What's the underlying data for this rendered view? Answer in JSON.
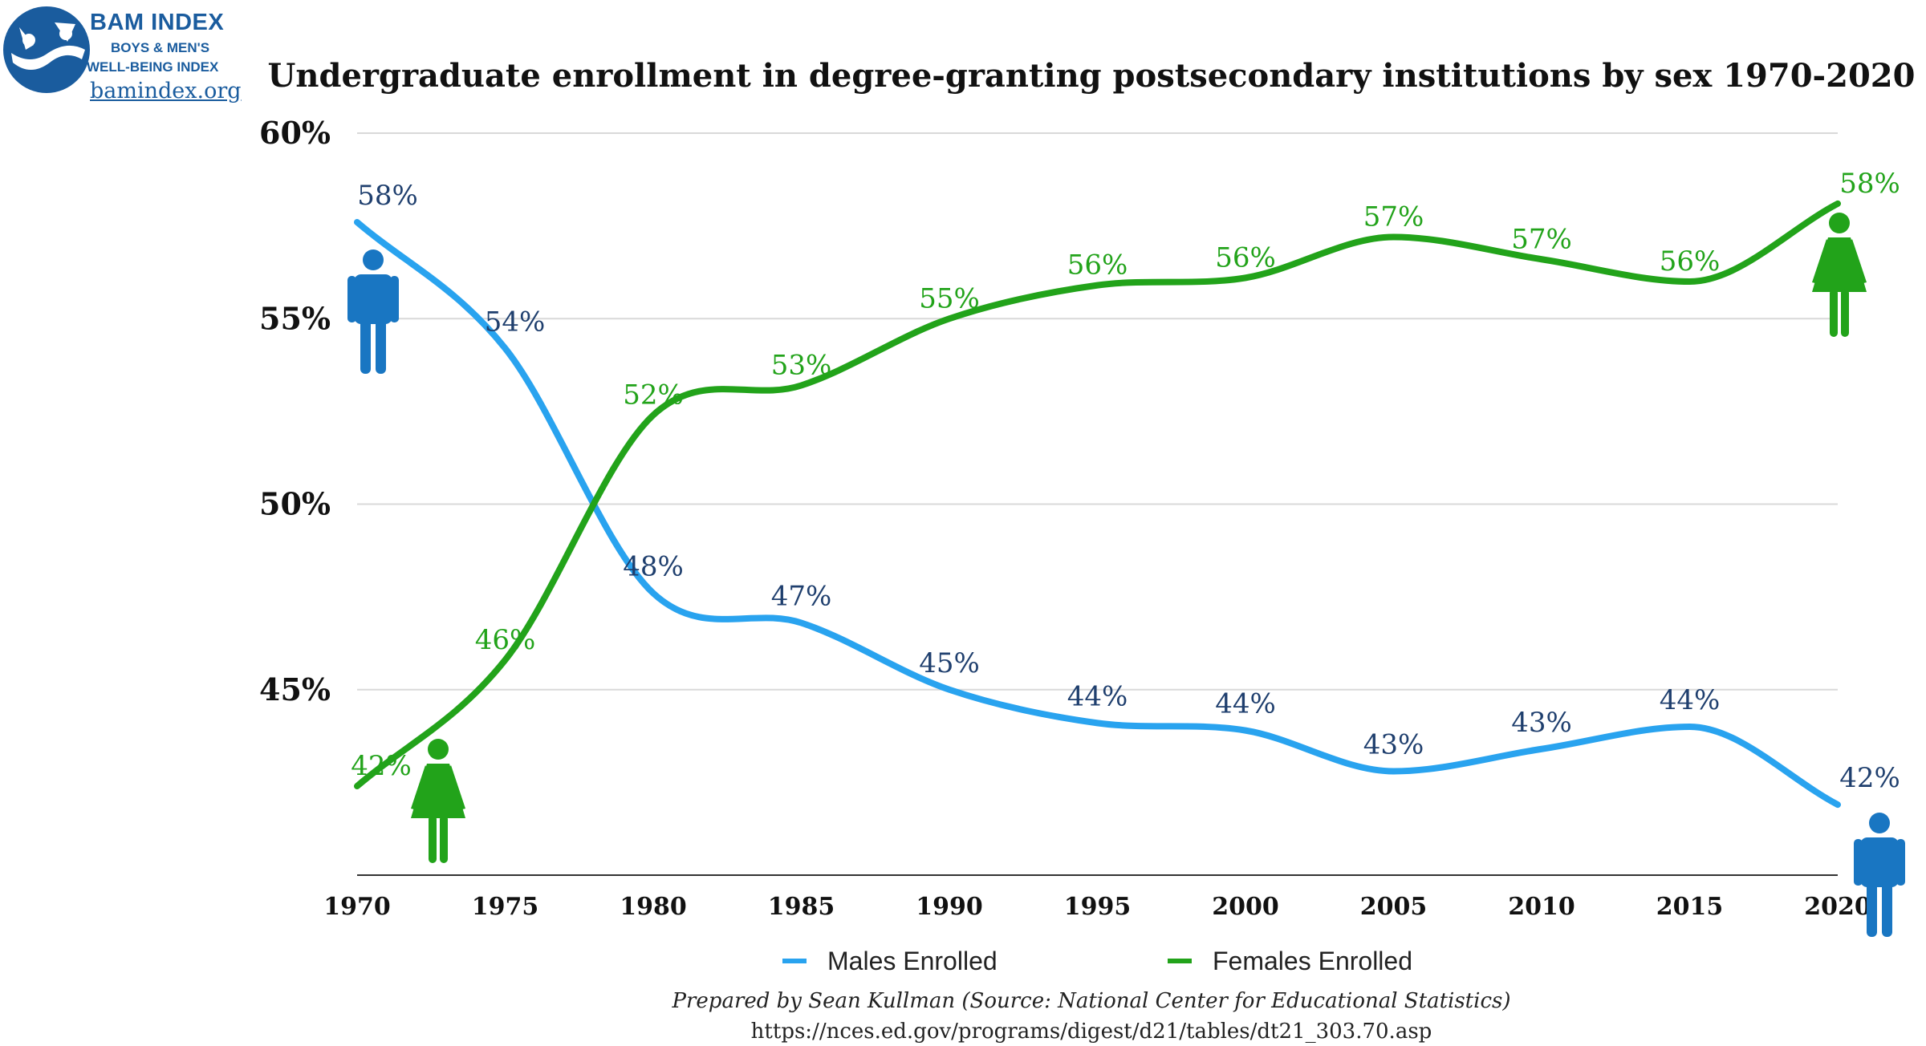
{
  "logo": {
    "line1": "BAM INDEX",
    "line2": "BOYS & MEN'S",
    "line3": "WELL-BEING INDEX",
    "url": "bamindex.org",
    "color": "#1a5c9e"
  },
  "colors": {
    "males": "#29a3ef",
    "females": "#22a31a",
    "male_label": "#1f3f6e",
    "female_label": "#22a31a",
    "male_icon": "#1976c2",
    "female_icon": "#22a31a",
    "grid": "#d9d9d9",
    "axis": "#333333"
  },
  "chart_data": {
    "type": "line",
    "title": "Undergraduate enrollment in degree-granting postsecondary institutions by sex 1970-2020",
    "x": [
      1970,
      1975,
      1980,
      1985,
      1990,
      1995,
      2000,
      2005,
      2010,
      2015,
      2020
    ],
    "ylim": [
      40,
      60
    ],
    "yticks": [
      45,
      50,
      55,
      60
    ],
    "ytick_labels": [
      "45%",
      "50%",
      "55%",
      "60%"
    ],
    "grid": true,
    "legend_position": "bottom",
    "series": [
      {
        "name": "Males Enrolled",
        "values": [
          57.6,
          54.2,
          47.6,
          46.8,
          45.0,
          44.1,
          43.9,
          42.8,
          43.4,
          44.0,
          41.9
        ],
        "labels": [
          "58%",
          "54%",
          "48%",
          "47%",
          "45%",
          "44%",
          "44%",
          "43%",
          "43%",
          "44%",
          "42%"
        ]
      },
      {
        "name": "Females Enrolled",
        "values": [
          42.4,
          45.8,
          52.4,
          53.2,
          55.0,
          55.9,
          56.1,
          57.2,
          56.6,
          56.0,
          58.1
        ],
        "labels": [
          "42%",
          "46%",
          "52%",
          "53%",
          "55%",
          "56%",
          "56%",
          "57%",
          "57%",
          "56%",
          "58%"
        ]
      }
    ]
  },
  "footer": {
    "credit": "Prepared by Sean Kullman (Source: National Center for Educational Statistics)",
    "source_url": "https://nces.ed.gov/programs/digest/d21/tables/dt21_303.70.asp"
  }
}
